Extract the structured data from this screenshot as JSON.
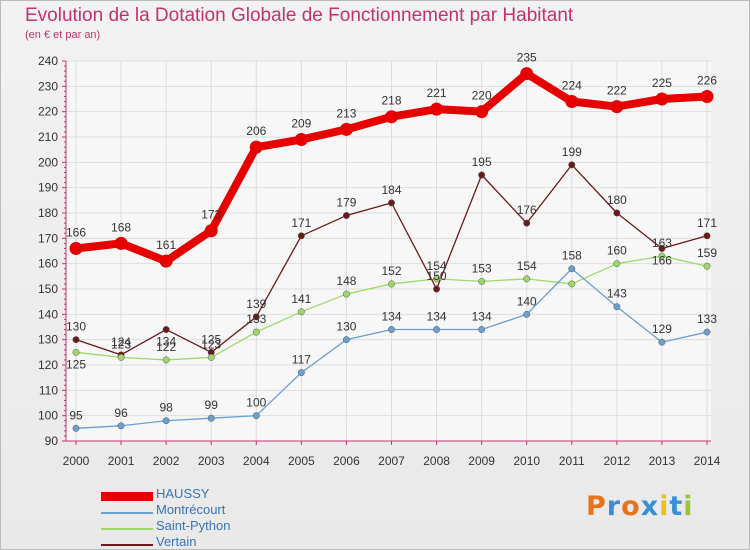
{
  "title": "Evolution de la Dotation Globale de Fonctionnement par Habitant",
  "subtitle": "(en € et par an)",
  "logo": {
    "text": "Proxiti",
    "colors": [
      "#e8731a",
      "#3a8fd6",
      "#e8731a",
      "#3a8fd6",
      "#e8c21a",
      "#3a8fd6",
      "#9bc43a"
    ]
  },
  "chart_data": {
    "type": "line",
    "title": "Evolution de la Dotation Globale de Fonctionnement par Habitant",
    "subtitle": "(en € et par an)",
    "xlabel": "",
    "ylabel": "",
    "x": [
      "2000",
      "2001",
      "2002",
      "2003",
      "2004",
      "2005",
      "2006",
      "2007",
      "2008",
      "2009",
      "2010",
      "2011",
      "2012",
      "2013",
      "2014"
    ],
    "ylim": [
      90,
      240
    ],
    "yticks": [
      90,
      100,
      110,
      120,
      130,
      140,
      150,
      160,
      170,
      180,
      190,
      200,
      210,
      220,
      230,
      240
    ],
    "grid": true,
    "legend": "bottom-left",
    "series": [
      {
        "name": "HAUSSY",
        "color": "#e60000",
        "emphasis": true,
        "values": [
          166,
          168,
          161,
          173,
          206,
          209,
          213,
          218,
          221,
          220,
          235,
          224,
          222,
          225,
          226
        ]
      },
      {
        "name": "Montrécourt",
        "color": "#6b9fd0",
        "emphasis": false,
        "values": [
          95,
          96,
          98,
          99,
          100,
          117,
          130,
          134,
          134,
          134,
          140,
          158,
          143,
          129,
          133
        ]
      },
      {
        "name": "Saint-Python",
        "color": "#9ed86b",
        "emphasis": false,
        "values": [
          125,
          123,
          122,
          123,
          133,
          141,
          148,
          152,
          154,
          153,
          154,
          152,
          160,
          163,
          159
        ]
      },
      {
        "name": "Vertain",
        "color": "#6b1a1a",
        "emphasis": false,
        "values": [
          130,
          124,
          134,
          125,
          139,
          171,
          179,
          184,
          150,
          195,
          176,
          199,
          180,
          166,
          171
        ]
      }
    ],
    "data_labels": [
      [
        166,
        168,
        161,
        173,
        206,
        209,
        213,
        218,
        221,
        220,
        235,
        224,
        222,
        225,
        226
      ],
      [
        95,
        96,
        98,
        99,
        100,
        117,
        130,
        134,
        134,
        134,
        140,
        158,
        143,
        129,
        133
      ],
      [
        125,
        123,
        122,
        123,
        133,
        141,
        148,
        152,
        154,
        153,
        154,
        null,
        160,
        163,
        159
      ],
      [
        130,
        124,
        134,
        125,
        139,
        171,
        179,
        184,
        150,
        195,
        176,
        199,
        180,
        166,
        171
      ]
    ]
  }
}
